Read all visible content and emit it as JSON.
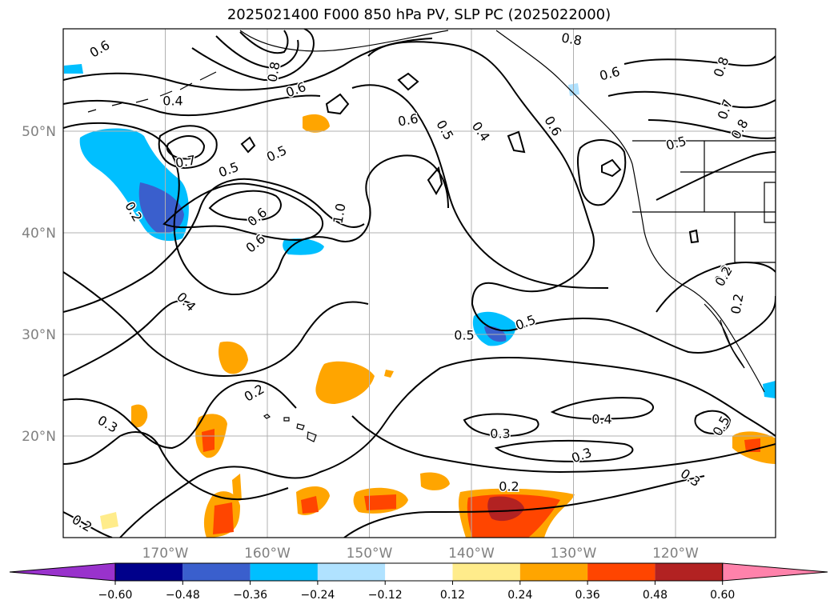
{
  "title": "2025021400 F000 850 hPa PV, SLP PC (2025022000)",
  "map": {
    "lat_ticks": [
      {
        "label": "50°N",
        "lat": 50
      },
      {
        "label": "40°N",
        "lat": 40
      },
      {
        "label": "30°N",
        "lat": 30
      },
      {
        "label": "20°N",
        "lat": 20
      }
    ],
    "lon_ticks": [
      {
        "label": "170°W",
        "lon": -170
      },
      {
        "label": "160°W",
        "lon": -160
      },
      {
        "label": "150°W",
        "lon": -150
      },
      {
        "label": "140°W",
        "lon": -140
      },
      {
        "label": "130°W",
        "lon": -130
      },
      {
        "label": "120°W",
        "lon": -120
      }
    ],
    "gridlines": true,
    "tick_color": "#808080",
    "contour_labels": [
      "0.6",
      "0.8",
      "0.6",
      "0.6",
      "0.4",
      "0.5",
      "0.8",
      "0.7",
      "0.5",
      "0.6",
      "0.5",
      "0.4",
      "0.6",
      "0.5",
      "0.7",
      "0.8",
      "0.6",
      "1.0",
      "0.8",
      "0.6",
      "0.4",
      "0.2",
      "0.5",
      "0.3",
      "0.2",
      "0.2",
      "0.3",
      "0.3",
      "0.4",
      "0.2",
      "0.3",
      "0.5",
      "0.2",
      "0.3",
      "0.2",
      "0.5"
    ]
  },
  "colorbar": {
    "ticks": [
      "−0.60",
      "−0.48",
      "−0.36",
      "−0.24",
      "−0.12",
      "0.12",
      "0.24",
      "0.36",
      "0.48",
      "0.60"
    ],
    "colors": [
      "#9932cc",
      "#00008b",
      "#3a5fcd",
      "#00bfff",
      "#b0e2ff",
      "#ffffff",
      "#ffec8b",
      "#ffa500",
      "#ff4500",
      "#b22222",
      "#ff82ab"
    ]
  }
}
